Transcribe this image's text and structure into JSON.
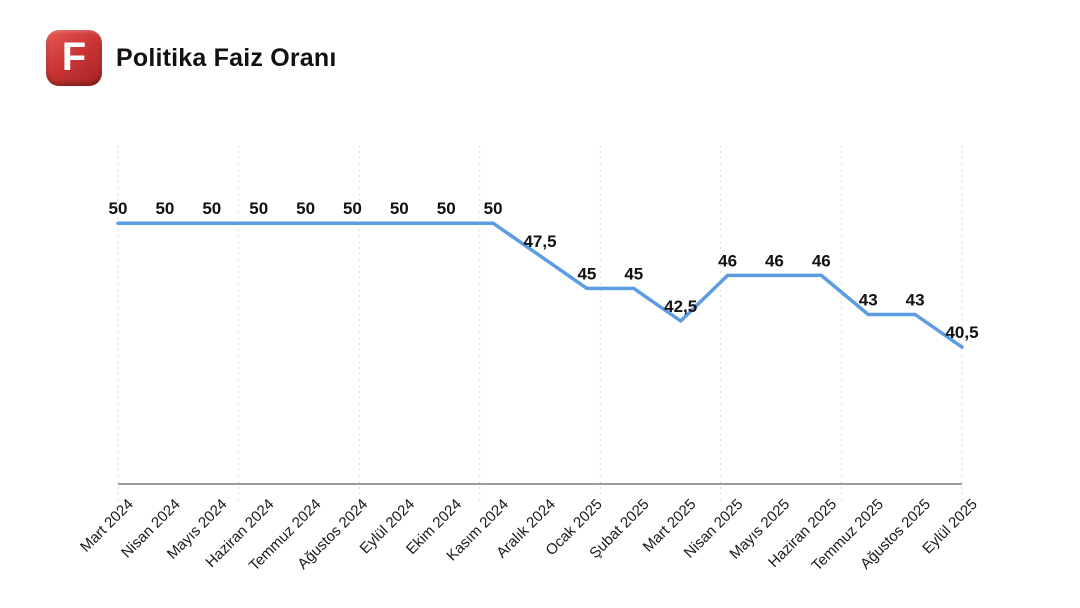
{
  "header": {
    "title": "Politika Faiz Oranı",
    "logo_letter": "F",
    "logo_color": "#cd3637"
  },
  "chart_data": {
    "type": "line",
    "title": "Politika Faiz Oranı",
    "categories": [
      "Mart 2024",
      "Nisan 2024",
      "Mayıs 2024",
      "Haziran 2024",
      "Temmuz 2024",
      "Ağustos 2024",
      "Eylül 2024",
      "Ekim 2024",
      "Kasım 2024",
      "Aralık 2024",
      "Ocak 2025",
      "Şubat 2025",
      "Mart 2025",
      "Nisan 2025",
      "Mayıs 2025",
      "Haziran 2025",
      "Temmuz 2025",
      "Ağustos 2025",
      "Eylül 2025"
    ],
    "values": [
      50,
      50,
      50,
      50,
      50,
      50,
      50,
      50,
      50,
      47.5,
      45,
      45,
      42.5,
      46,
      46,
      46,
      43,
      43,
      40.5
    ],
    "point_labels": [
      "50",
      "50",
      "50",
      "50",
      "50",
      "50",
      "50",
      "50",
      "50",
      "47,5",
      "45",
      "45",
      "42,5",
      "46",
      "46",
      "46",
      "43",
      "43",
      "40,5"
    ],
    "xlabel": "",
    "ylabel": "",
    "ylim": [
      30,
      56
    ],
    "grid": "vertical-dotted",
    "gridline_count": 8,
    "legend": "none",
    "line_color": "#5b9ce3",
    "label_color": "#111111",
    "axis_label_color": "#1a1a1a",
    "axis_color": "#9b9b9b",
    "gridline_color": "#d9d9d9"
  }
}
